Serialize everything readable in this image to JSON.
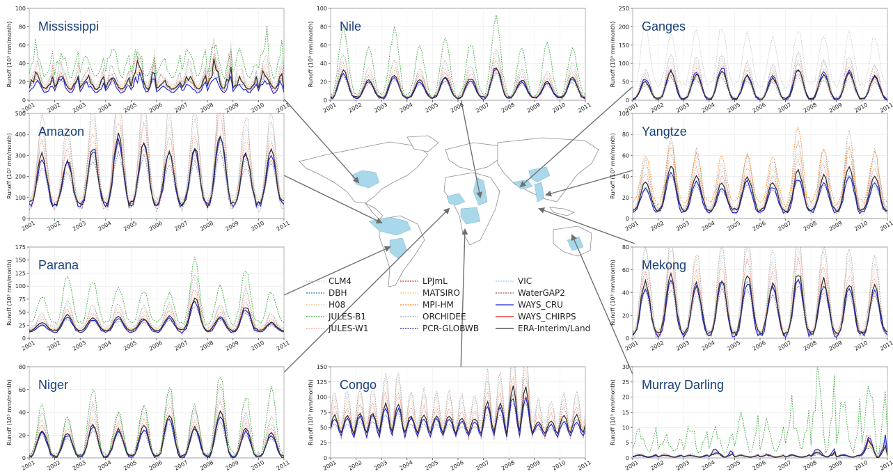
{
  "figure": {
    "ylabel_template": "Runoff (10³ mm/month)",
    "x_ticks": [
      "2001",
      "2002",
      "2003",
      "2004",
      "2005",
      "2006",
      "2007",
      "2008",
      "2009",
      "2010",
      "2011"
    ]
  },
  "colors": {
    "land": "#ffffff",
    "border": "#8c8c8c",
    "basin_fill": "#a8d8ea",
    "arrow": "#707070",
    "title": "#1a3f7a"
  },
  "legend": [
    {
      "label": "CLM4",
      "color": "#c7c7c7",
      "style": "dotted"
    },
    {
      "label": "DBH",
      "color": "#1f77b4",
      "style": "dotted"
    },
    {
      "label": "H08",
      "color": "#e8c26a",
      "style": "dotted"
    },
    {
      "label": "JULES-B1",
      "color": "#2ca02c",
      "style": "dotted"
    },
    {
      "label": "JULES-W1",
      "color": "#f2a0a0",
      "style": "dotted"
    },
    {
      "label": "LPJmL",
      "color": "#d62728",
      "style": "dotted"
    },
    {
      "label": "MATSIRO",
      "color": "#f5c27a",
      "style": "dotted"
    },
    {
      "label": "MPI-HM",
      "color": "#ff7f0e",
      "style": "dotted"
    },
    {
      "label": "ORCHIDEE",
      "color": "#a9a9a9",
      "style": "dotted"
    },
    {
      "label": "PCR-GLOBWB",
      "color": "#1a237e",
      "style": "dotted"
    },
    {
      "label": "VIC",
      "color": "#9ecae1",
      "style": "dotted"
    },
    {
      "label": "WaterGAP2",
      "color": "#8c564b",
      "style": "dotted"
    },
    {
      "label": "WAYS_CRU",
      "color": "#1f1fd6",
      "style": "solid"
    },
    {
      "label": "WAYS_CHIRPS",
      "color": "#e41a1c",
      "style": "solid"
    },
    {
      "label": "ERA-Interim/Land",
      "color": "#333333",
      "style": "solid"
    }
  ],
  "chart_data": [
    {
      "type": "line",
      "title": "Mississippi",
      "ylabel": "Runoff (10³ mm/month)",
      "ylim": [
        0,
        100
      ],
      "yticks": [
        0,
        20,
        40,
        60,
        80,
        100
      ],
      "x": [
        "2001",
        "2011"
      ],
      "pattern": "irregular",
      "series": [
        {
          "name": "ERA-Interim/Land",
          "peaks": [
            30,
            28,
            27,
            25,
            40,
            22,
            28,
            42,
            25,
            33,
            15
          ],
          "base": 12
        },
        {
          "name": "WAYS_CRU",
          "peaks": [
            22,
            25,
            20,
            23,
            30,
            18,
            22,
            30,
            20,
            28,
            12
          ],
          "base": 8
        },
        {
          "name": "JULES-B1",
          "peaks": [
            65,
            60,
            55,
            70,
            60,
            50,
            62,
            70,
            55,
            80,
            60
          ],
          "base": 25
        }
      ]
    },
    {
      "type": "line",
      "title": "Nile",
      "ylabel": "Runoff (10³ mm/month)",
      "ylim": [
        0,
        100
      ],
      "yticks": [
        0,
        20,
        40,
        60,
        80,
        100
      ],
      "x": [
        "2001",
        "2011"
      ],
      "pattern": "annual",
      "series": [
        {
          "name": "ERA-Interim/Land",
          "peaks": [
            32,
            22,
            28,
            22,
            26,
            24,
            36,
            22,
            20,
            25
          ],
          "base": 3
        },
        {
          "name": "WAYS_CRU",
          "peaks": [
            30,
            20,
            26,
            20,
            24,
            22,
            34,
            20,
            18,
            24
          ],
          "base": 2
        },
        {
          "name": "JULES-B1",
          "peaks": [
            80,
            60,
            76,
            60,
            70,
            62,
            90,
            55,
            60,
            55
          ],
          "base": 5
        }
      ]
    },
    {
      "type": "line",
      "title": "Ganges",
      "ylabel": "Runoff (10³ mm/month)",
      "ylim": [
        0,
        250
      ],
      "yticks": [
        0,
        50,
        100,
        150,
        200,
        250
      ],
      "x": [
        "2001",
        "2011"
      ],
      "pattern": "annual",
      "series": [
        {
          "name": "ERA-Interim/Land",
          "peaks": [
            50,
            75,
            70,
            80,
            65,
            60,
            80,
            70,
            75,
            62
          ],
          "base": 3
        },
        {
          "name": "WAYS_CRU",
          "peaks": [
            58,
            80,
            75,
            90,
            70,
            65,
            85,
            75,
            80,
            68
          ],
          "base": 3
        },
        {
          "name": "CLM4",
          "peaks": [
            200,
            180,
            190,
            200,
            180,
            170,
            190,
            180,
            185,
            175
          ],
          "base": 40
        }
      ]
    },
    {
      "type": "line",
      "title": "Amazon",
      "ylabel": "Runoff (10³ mm/month)",
      "ylim": [
        0,
        500
      ],
      "yticks": [
        0,
        100,
        200,
        300,
        400,
        500
      ],
      "x": [
        "2001",
        "2011"
      ],
      "pattern": "annual",
      "series": [
        {
          "name": "ERA-Interim/Land",
          "peaks": [
            300,
            280,
            340,
            390,
            370,
            320,
            330,
            410,
            310,
            320
          ],
          "base": 70
        },
        {
          "name": "WAYS_CRU",
          "peaks": [
            280,
            270,
            330,
            370,
            350,
            310,
            320,
            395,
            300,
            300
          ],
          "base": 65
        }
      ]
    },
    {
      "type": "line",
      "title": "Yangtze",
      "ylabel": "Runoff (10³ mm/month)",
      "ylim": [
        0,
        100
      ],
      "yticks": [
        0,
        20,
        40,
        60,
        80,
        100
      ],
      "x": [
        "2001",
        "2011"
      ],
      "pattern": "annual",
      "series": [
        {
          "name": "ERA-Interim/Land",
          "peaks": [
            35,
            50,
            40,
            33,
            40,
            35,
            45,
            40,
            50,
            40
          ],
          "base": 8
        },
        {
          "name": "WAYS_CRU",
          "peaks": [
            28,
            45,
            35,
            28,
            35,
            30,
            38,
            35,
            40,
            35
          ],
          "base": 6
        },
        {
          "name": "MPI-HM",
          "peaks": [
            60,
            70,
            62,
            60,
            60,
            60,
            88,
            65,
            68,
            62
          ],
          "base": 15
        }
      ]
    },
    {
      "type": "line",
      "title": "Parana",
      "ylabel": "Runoff (10³ mm/month)",
      "ylim": [
        0,
        175
      ],
      "yticks": [
        0,
        25,
        50,
        75,
        100,
        125,
        150,
        175
      ],
      "x": [
        "2001",
        "2011"
      ],
      "pattern": "annual",
      "series": [
        {
          "name": "ERA-Interim/Land",
          "peaks": [
            30,
            45,
            40,
            42,
            38,
            42,
            78,
            42,
            60,
            30
          ],
          "base": 15
        },
        {
          "name": "WAYS_CRU",
          "peaks": [
            25,
            40,
            35,
            38,
            35,
            38,
            70,
            38,
            55,
            28
          ],
          "base": 12
        },
        {
          "name": "JULES-B1",
          "peaks": [
            80,
            120,
            110,
            100,
            90,
            85,
            150,
            100,
            130,
            90
          ],
          "base": 30
        }
      ]
    },
    {
      "type": "line",
      "title": "Mekong",
      "ylabel": "Runoff (10³ mm/month)",
      "ylim": [
        0,
        80
      ],
      "yticks": [
        0,
        20,
        40,
        60,
        80
      ],
      "x": [
        "2001",
        "2011"
      ],
      "pattern": "annual",
      "series": [
        {
          "name": "ERA-Interim/Land",
          "peaks": [
            50,
            55,
            48,
            52,
            55,
            48,
            57,
            52,
            48,
            45
          ],
          "base": 4
        },
        {
          "name": "WAYS_CRU",
          "peaks": [
            45,
            50,
            45,
            48,
            50,
            45,
            52,
            48,
            45,
            42
          ],
          "base": 3
        }
      ]
    },
    {
      "type": "line",
      "title": "Niger",
      "ylabel": "Runoff (10³ mm/month)",
      "ylim": [
        0,
        80
      ],
      "yticks": [
        0,
        20,
        40,
        60,
        80
      ],
      "x": [
        "2001",
        "2011"
      ],
      "pattern": "annual",
      "series": [
        {
          "name": "ERA-Interim/Land",
          "peaks": [
            25,
            22,
            30,
            25,
            28,
            38,
            28,
            40,
            25,
            22
          ],
          "base": 1
        },
        {
          "name": "WAYS_CRU",
          "peaks": [
            23,
            20,
            28,
            23,
            25,
            35,
            25,
            38,
            23,
            20
          ],
          "base": 1
        },
        {
          "name": "JULES-B1",
          "peaks": [
            45,
            35,
            62,
            40,
            45,
            63,
            45,
            72,
            55,
            60
          ],
          "base": 2
        }
      ]
    },
    {
      "type": "line",
      "title": "Congo",
      "ylabel": "Runoff (10³ mm/month)",
      "ylim": [
        0,
        150
      ],
      "yticks": [
        0,
        25,
        50,
        75,
        100,
        125,
        150
      ],
      "x": [
        "2001",
        "2011"
      ],
      "pattern": "biannual",
      "series": [
        {
          "name": "ERA-Interim/Land",
          "peaks": [
            70,
            75,
            90,
            70,
            70,
            65,
            90,
            115,
            60,
            70
          ],
          "base": 40
        },
        {
          "name": "WAYS_CRU",
          "peaks": [
            65,
            70,
            82,
            65,
            65,
            60,
            85,
            100,
            55,
            60
          ],
          "base": 35
        }
      ]
    },
    {
      "type": "line",
      "title": "Murray Darling",
      "ylabel": "Runoff (10³ mm/month)",
      "ylim": [
        0,
        30
      ],
      "yticks": [
        0,
        5,
        10,
        15,
        20,
        25,
        30
      ],
      "x": [
        "2001",
        "2011"
      ],
      "pattern": "irregular",
      "series": [
        {
          "name": "ERA-Interim/Land",
          "peaks": [
            1,
            1,
            1,
            2,
            1,
            1,
            1,
            2,
            1,
            6,
            6
          ],
          "base": 0.3
        },
        {
          "name": "WAYS_CRU",
          "peaks": [
            1,
            1,
            1,
            3,
            1,
            1,
            1,
            3,
            1,
            8,
            10
          ],
          "base": 0.2
        },
        {
          "name": "JULES-B1",
          "peaks": [
            10,
            8,
            12,
            10,
            15,
            12,
            20,
            28,
            22,
            30,
            30
          ],
          "base": 2
        }
      ]
    }
  ]
}
